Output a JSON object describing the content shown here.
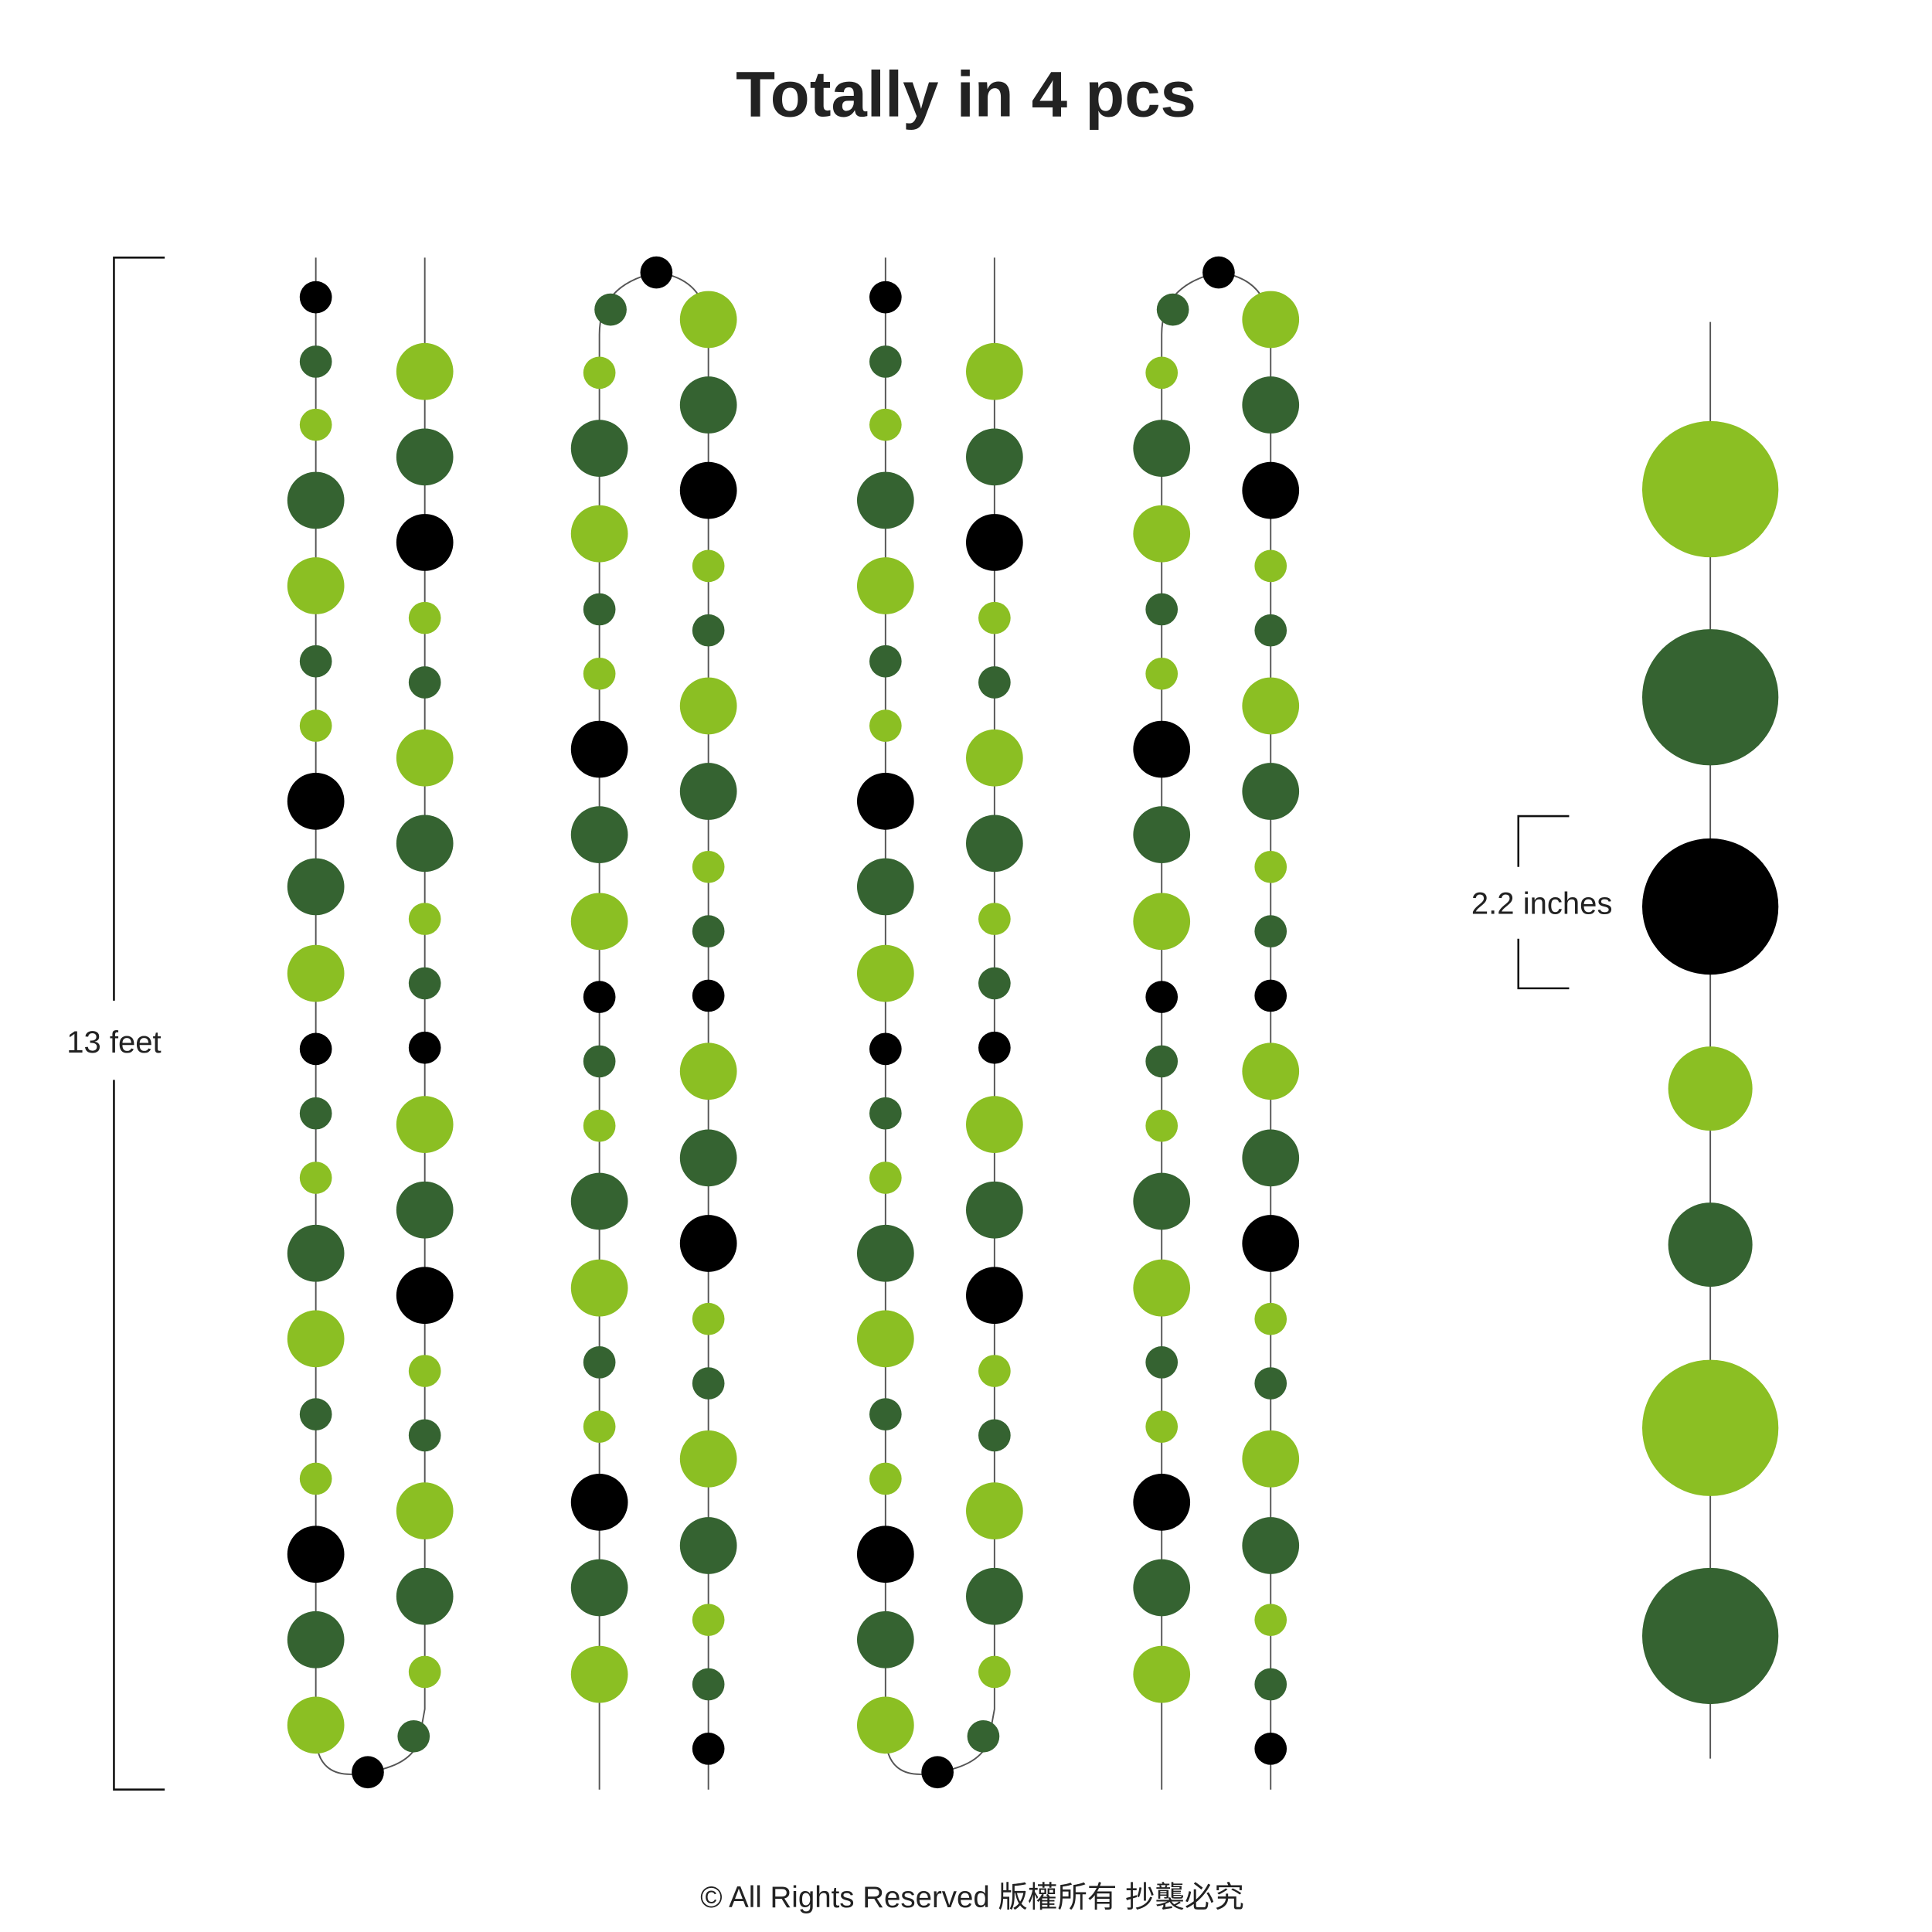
{
  "header": {
    "title": "Totally in 4 pcs"
  },
  "dimensions": {
    "length": "13 feet",
    "diameter": "2.2 inches"
  },
  "footer": {
    "copyright": "© All Rights Reserved 版權所有 抄襲必究"
  }
}
